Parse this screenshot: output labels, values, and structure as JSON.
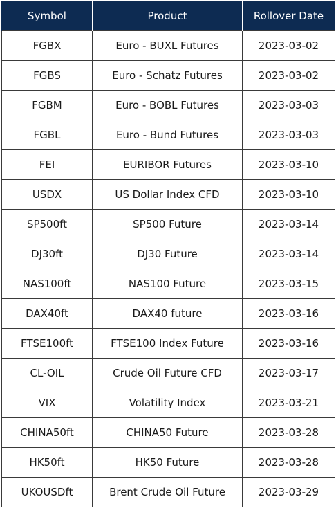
{
  "table": {
    "headers": [
      "Symbol",
      "Product",
      "Rollover Date"
    ],
    "rows": [
      [
        "FGBX",
        "Euro - BUXL Futures",
        "2023-03-02"
      ],
      [
        "FGBS",
        "Euro - Schatz Futures",
        "2023-03-02"
      ],
      [
        "FGBM",
        "Euro - BOBL Futures",
        "2023-03-03"
      ],
      [
        "FGBL",
        "Euro - Bund Futures",
        "2023-03-03"
      ],
      [
        "FEI",
        "EURIBOR Futures",
        "2023-03-10"
      ],
      [
        "USDX",
        "US Dollar Index CFD",
        "2023-03-10"
      ],
      [
        "SP500ft",
        "SP500 Future",
        "2023-03-14"
      ],
      [
        "DJ30ft",
        "DJ30 Future",
        "2023-03-14"
      ],
      [
        "NAS100ft",
        "NAS100 Future",
        "2023-03-15"
      ],
      [
        "DAX40ft",
        "DAX40 future",
        "2023-03-16"
      ],
      [
        "FTSE100ft",
        "FTSE100 Index Future",
        "2023-03-16"
      ],
      [
        "CL-OIL",
        "Crude Oil Future CFD",
        "2023-03-17"
      ],
      [
        "VIX",
        "Volatility Index",
        "2023-03-21"
      ],
      [
        "CHINA50ft",
        "CHINA50 Future",
        "2023-03-28"
      ],
      [
        "HK50ft",
        "HK50 Future",
        "2023-03-28"
      ],
      [
        "UKOUSDft",
        "Brent Crude Oil Future",
        "2023-03-29"
      ]
    ]
  },
  "colors": {
    "header_background": "#0d2b52",
    "header_text": "#ffffff",
    "cell_border": "#3a3a3a"
  }
}
